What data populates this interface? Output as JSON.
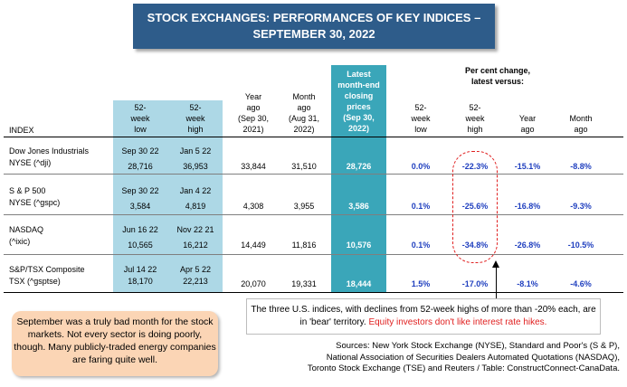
{
  "title": {
    "line1": "STOCK EXCHANGES: PERFORMANCES OF KEY INDICES –",
    "line2": "SEPTEMBER 30, 2022"
  },
  "headers": {
    "index": "INDEX",
    "low52": [
      "52-",
      "week",
      "low"
    ],
    "high52": [
      "52-",
      "week",
      "high"
    ],
    "year_ago": [
      "Year",
      "ago",
      "(Sep 30,",
      "2021)"
    ],
    "month_ago": [
      "Month",
      "ago",
      "(Aug 31,",
      "2022)"
    ],
    "latest": [
      "Latest",
      "month-end",
      "closing",
      "prices",
      "(Sep 30,",
      "2022)"
    ],
    "pct_group": [
      "Per cent change,",
      "latest versus:"
    ],
    "pct_low": [
      "52-",
      "week",
      "low"
    ],
    "pct_high": [
      "52-",
      "week",
      "high"
    ],
    "pct_year": [
      "Year",
      "ago"
    ],
    "pct_month": [
      "Month",
      "ago"
    ]
  },
  "chart_data": {
    "type": "table",
    "title": "STOCK EXCHANGES: PERFORMANCES OF KEY INDICES – SEPTEMBER 30, 2022",
    "rows": [
      {
        "name": [
          "Dow Jones Industrials",
          "NYSE (^dji)"
        ],
        "low_date": "Sep 30 22",
        "low_value": "28,716",
        "high_date": "Jan 5 22",
        "high_value": "36,953",
        "year_ago": "33,844",
        "month_ago": "31,510",
        "latest": "28,726",
        "pct_low": "0.0%",
        "pct_high": "-22.3%",
        "pct_year": "-15.1%",
        "pct_month": "-8.8%"
      },
      {
        "name": [
          "S & P 500",
          "NYSE (^gspc)"
        ],
        "low_date": "Sep 30 22",
        "low_value": "3,584",
        "high_date": "Jan 4 22",
        "high_value": "4,819",
        "year_ago": "4,308",
        "month_ago": "3,955",
        "latest": "3,586",
        "pct_low": "0.1%",
        "pct_high": "-25.6%",
        "pct_year": "-16.8%",
        "pct_month": "-9.3%"
      },
      {
        "name": [
          "NASDAQ",
          "(^ixic)"
        ],
        "low_date": "Jun 16 22",
        "low_value": "10,565",
        "high_date": "Nov 22 21",
        "high_value": "16,212",
        "year_ago": "14,449",
        "month_ago": "11,816",
        "latest": "10,576",
        "pct_low": "0.1%",
        "pct_high": "-34.8%",
        "pct_year": "-26.8%",
        "pct_month": "-10.5%"
      },
      {
        "name": [
          "S&P/TSX Composite",
          "TSX (^gsptse)"
        ],
        "low_date": "Jul 14 22",
        "low_value": "18,170",
        "high_date": "Apr 5 22",
        "high_value": "22,213",
        "year_ago": "20,070",
        "month_ago": "19,331",
        "latest": "18,444",
        "pct_low": "1.5%",
        "pct_high": "-17.0%",
        "pct_year": "-8.1%",
        "pct_month": "-4.6%"
      }
    ]
  },
  "note": {
    "text": "The three U.S. indices, with declines from 52-week highs of more than -20% each, are in 'bear' territory.",
    "highlight": "Equity investors don't like interest rate hikes."
  },
  "callout": "September was a truly bad month for the stock markets. Not every sector is doing poorly, though. Many publicly-traded energy companies are faring quite well.",
  "sources": [
    "Sources: New York Stock Exchange (NYSE), Standard and Poor's (S & P),",
    "National Association of Securities Dealers Automated Quotations (NASDAQ),",
    "Toronto Stock Exchange (TSE) and Reuters / Table: ConstructConnect-CanaData."
  ],
  "colors": {
    "title_bg": "#2e5c8a",
    "band_light": "#add8e6",
    "band_teal": "#3aa6b9",
    "pct_blue": "#1f3fbf",
    "highlight_red": "#e02020",
    "callout_bg": "#fbd5b5"
  }
}
